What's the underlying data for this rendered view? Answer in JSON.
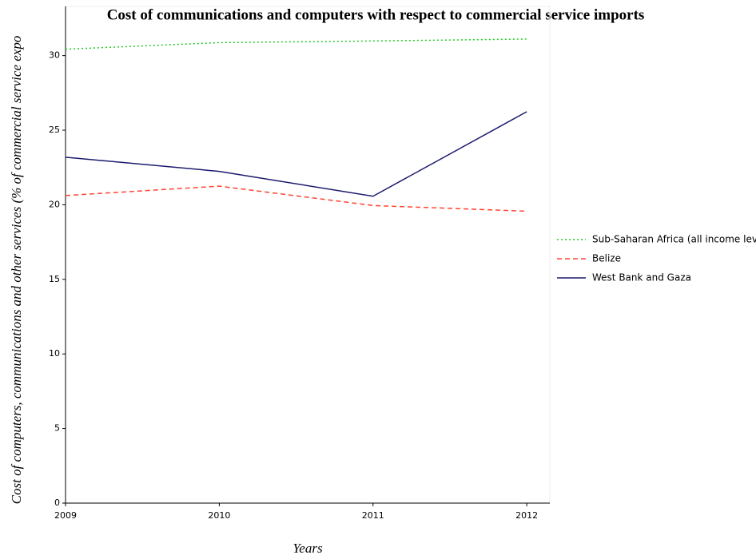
{
  "chart_data": {
    "type": "line",
    "title": "Cost of communications and computers with respect to commercial service imports",
    "xlabel": "Years",
    "ylabel": "Cost of computers, communications and other services (% of commercial service expo",
    "x": [
      2009,
      2010,
      2011,
      2012
    ],
    "xlim": [
      2009,
      2012.15
    ],
    "xticks": [
      2009,
      2010,
      2011,
      2012
    ],
    "ylim": [
      0,
      33.3
    ],
    "yticks": [
      0,
      5,
      10,
      15,
      20,
      25,
      30
    ],
    "legend": "right",
    "series": [
      {
        "name": "Sub-Saharan Africa (all income levels)",
        "color": "#22cc22",
        "dash": "dotted",
        "values": [
          30.43,
          30.87,
          30.98,
          31.11
        ]
      },
      {
        "name": "Belize",
        "color": "#ff4433",
        "dash": "dashed",
        "values": [
          20.62,
          21.25,
          19.95,
          19.57
        ]
      },
      {
        "name": "West Bank and Gaza",
        "color": "#1a1a6e",
        "dash": "solid",
        "values": [
          23.19,
          22.24,
          20.57,
          26.24
        ]
      }
    ]
  }
}
